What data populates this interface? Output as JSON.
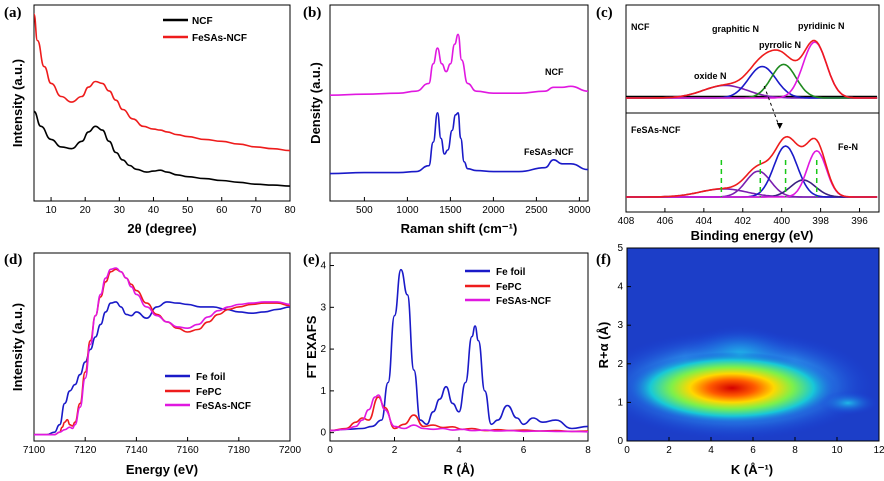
{
  "chart_data": [
    {
      "panel": "(a)",
      "type": "line",
      "xlabel": "2θ (degree)",
      "ylabel": "Intensity (a.u.)",
      "xlim": [
        5,
        80
      ],
      "xticks": [
        10,
        20,
        30,
        40,
        50,
        60,
        70,
        80
      ],
      "ylim": [
        0,
        1
      ],
      "legend_position": "top-right",
      "series": [
        {
          "name": "NCF",
          "color": "#000000",
          "x": [
            5,
            7,
            10,
            13,
            16,
            19,
            21,
            23,
            25,
            27,
            29,
            31,
            33,
            35,
            38,
            40,
            42,
            44,
            47,
            50,
            55,
            60,
            65,
            70,
            75,
            80
          ],
          "y": [
            0.48,
            0.4,
            0.33,
            0.29,
            0.28,
            0.32,
            0.37,
            0.4,
            0.38,
            0.32,
            0.26,
            0.22,
            0.19,
            0.17,
            0.155,
            0.16,
            0.165,
            0.155,
            0.14,
            0.13,
            0.12,
            0.11,
            0.1,
            0.09,
            0.085,
            0.08
          ]
        },
        {
          "name": "FeSAs-NCF",
          "color": "#ee1c1c",
          "x": [
            5,
            6,
            8,
            10,
            13,
            16,
            19,
            21,
            23,
            25,
            27,
            29,
            31,
            34,
            37,
            40,
            42,
            44,
            47,
            50,
            55,
            60,
            65,
            70,
            75,
            80
          ],
          "y": [
            1.0,
            0.86,
            0.72,
            0.63,
            0.56,
            0.53,
            0.56,
            0.61,
            0.64,
            0.63,
            0.59,
            0.54,
            0.49,
            0.44,
            0.4,
            0.385,
            0.38,
            0.37,
            0.355,
            0.345,
            0.33,
            0.32,
            0.305,
            0.29,
            0.28,
            0.27
          ]
        }
      ]
    },
    {
      "panel": "(b)",
      "type": "line",
      "xlabel": "Raman shift (cm⁻¹)",
      "ylabel": "Density (a.u.)",
      "xlim": [
        100,
        3100
      ],
      "xticks": [
        500,
        1000,
        1500,
        2000,
        2500,
        3000
      ],
      "ylim": [
        0,
        1
      ],
      "series": [
        {
          "name": "NCF",
          "color": "#e018e0",
          "x": [
            100,
            500,
            900,
            1100,
            1250,
            1300,
            1350,
            1400,
            1450,
            1500,
            1550,
            1590,
            1630,
            1700,
            1800,
            2000,
            2300,
            2600,
            2700,
            2800,
            2900,
            3100
          ],
          "y": [
            0.54,
            0.545,
            0.55,
            0.56,
            0.6,
            0.7,
            0.78,
            0.7,
            0.66,
            0.7,
            0.8,
            0.85,
            0.72,
            0.6,
            0.56,
            0.55,
            0.55,
            0.56,
            0.58,
            0.58,
            0.585,
            0.56
          ]
        },
        {
          "name": "FeSAs-NCF",
          "color": "#1a1ac8",
          "x": [
            100,
            500,
            900,
            1100,
            1250,
            1300,
            1350,
            1390,
            1430,
            1470,
            1520,
            1560,
            1590,
            1620,
            1660,
            1700,
            1800,
            2000,
            2300,
            2600,
            2700,
            2800,
            2900,
            3100
          ],
          "y": [
            0.14,
            0.145,
            0.145,
            0.15,
            0.18,
            0.3,
            0.45,
            0.32,
            0.24,
            0.26,
            0.36,
            0.44,
            0.45,
            0.32,
            0.2,
            0.165,
            0.155,
            0.15,
            0.15,
            0.17,
            0.21,
            0.19,
            0.19,
            0.16
          ]
        }
      ],
      "labels": [
        "NCF",
        "FeSAs-NCF"
      ]
    },
    {
      "panel": "(c)",
      "type": "line",
      "xlabel": "Binding energy (eV)",
      "xlim": [
        408,
        395
      ],
      "xticks": [
        408,
        406,
        404,
        402,
        400,
        398,
        396
      ],
      "sub_panels": [
        "NCF",
        "FeSAs-NCF"
      ],
      "annotations": [
        "graphitic N",
        "pyridinic N",
        "pyrrolic N",
        "oxide N",
        "Fe-N"
      ],
      "series_colors": {
        "envelope": "#ee1c1c",
        "pyridinic": "#e018e0",
        "pyrrolic": "#1f8a1f",
        "graphitic": "#1a1ac8",
        "oxide": "#7a1fb0",
        "fe_n": "#3a2080",
        "baseline": "#000000"
      }
    },
    {
      "panel": "(d)",
      "type": "line",
      "xlabel": "Energy (eV)",
      "ylabel": "Intensity (a.u.)",
      "xlim": [
        7100,
        7200
      ],
      "xticks": [
        7100,
        7120,
        7140,
        7160,
        7180,
        7200
      ],
      "ylim": [
        0,
        1.4
      ],
      "legend_position": "bottom-right",
      "series": [
        {
          "name": "Fe foil",
          "color": "#1a1ac8",
          "x": [
            7100,
            7105,
            7108,
            7110,
            7112,
            7114,
            7116,
            7118,
            7120,
            7122,
            7124,
            7126,
            7128,
            7130,
            7132,
            7134,
            7136,
            7138,
            7140,
            7144,
            7148,
            7152,
            7156,
            7160,
            7165,
            7170,
            7175,
            7180,
            7185,
            7190,
            7195,
            7200
          ],
          "y": [
            0.0,
            0.0,
            0.02,
            0.08,
            0.25,
            0.35,
            0.4,
            0.48,
            0.58,
            0.68,
            0.78,
            0.88,
            0.98,
            1.05,
            1.06,
            1.02,
            0.96,
            0.95,
            0.98,
            0.93,
            1.02,
            1.06,
            1.05,
            1.04,
            1.02,
            1.02,
            1.0,
            0.98,
            0.97,
            0.98,
            1.0,
            1.02
          ]
        },
        {
          "name": "FePC",
          "color": "#ee1c1c",
          "x": [
            7100,
            7108,
            7110,
            7111,
            7112,
            7113,
            7114,
            7115,
            7116,
            7118,
            7120,
            7122,
            7124,
            7126,
            7128,
            7130,
            7132,
            7134,
            7136,
            7138,
            7140,
            7144,
            7148,
            7152,
            7156,
            7160,
            7164,
            7168,
            7172,
            7176,
            7180,
            7185,
            7190,
            7195,
            7200
          ],
          "y": [
            0.0,
            0.0,
            0.02,
            0.06,
            0.1,
            0.12,
            0.08,
            0.07,
            0.1,
            0.25,
            0.5,
            0.75,
            0.95,
            1.1,
            1.22,
            1.3,
            1.32,
            1.3,
            1.25,
            1.2,
            1.15,
            1.05,
            0.96,
            0.9,
            0.85,
            0.82,
            0.84,
            0.9,
            0.96,
            1.0,
            1.02,
            1.04,
            1.05,
            1.05,
            1.03
          ]
        },
        {
          "name": "FeSAs-NCF",
          "color": "#e018e0",
          "x": [
            7100,
            7108,
            7110,
            7112,
            7114,
            7115,
            7116,
            7118,
            7120,
            7122,
            7124,
            7126,
            7128,
            7130,
            7132,
            7134,
            7136,
            7138,
            7140,
            7144,
            7148,
            7152,
            7156,
            7160,
            7164,
            7168,
            7172,
            7176,
            7180,
            7185,
            7190,
            7195,
            7200
          ],
          "y": [
            0.0,
            0.0,
            0.02,
            0.04,
            0.06,
            0.05,
            0.08,
            0.22,
            0.45,
            0.72,
            0.95,
            1.12,
            1.25,
            1.32,
            1.33,
            1.3,
            1.25,
            1.18,
            1.12,
            1.02,
            0.95,
            0.9,
            0.86,
            0.85,
            0.88,
            0.94,
            0.99,
            1.02,
            1.04,
            1.05,
            1.06,
            1.06,
            1.04
          ]
        }
      ]
    },
    {
      "panel": "(e)",
      "type": "line",
      "xlabel": "R (Å)",
      "ylabel": "FT EXAFS",
      "xlim": [
        0,
        8
      ],
      "xticks": [
        0,
        2,
        4,
        6,
        8
      ],
      "ylim": [
        -0.2,
        4.3
      ],
      "yticks": [
        0,
        1,
        2,
        3,
        4
      ],
      "legend_position": "top-right",
      "series": [
        {
          "name": "Fe foil",
          "color": "#1a1ac8",
          "x": [
            0,
            0.5,
            1.0,
            1.3,
            1.6,
            1.8,
            2.0,
            2.2,
            2.4,
            2.6,
            2.8,
            3.0,
            3.2,
            3.4,
            3.6,
            3.8,
            4.0,
            4.2,
            4.4,
            4.5,
            4.6,
            4.8,
            5.0,
            5.2,
            5.5,
            5.8,
            6.0,
            6.3,
            6.6,
            7.0,
            7.5,
            8.0
          ],
          "y": [
            0.05,
            0.08,
            0.1,
            0.15,
            0.3,
            1.2,
            2.8,
            3.9,
            3.3,
            1.5,
            0.3,
            0.2,
            0.5,
            0.8,
            1.1,
            0.7,
            0.5,
            1.2,
            2.3,
            2.55,
            2.2,
            1.0,
            0.2,
            0.3,
            0.65,
            0.35,
            0.2,
            0.35,
            0.25,
            0.3,
            0.1,
            0.15
          ]
        },
        {
          "name": "FePC",
          "color": "#ee1c1c",
          "x": [
            0,
            0.5,
            0.8,
            1.0,
            1.2,
            1.5,
            1.7,
            2.0,
            2.3,
            2.6,
            2.9,
            3.2,
            3.5,
            3.8,
            4.1,
            4.4,
            4.8,
            5.2,
            5.6,
            6.0,
            6.5,
            7.0,
            7.5,
            8.0
          ],
          "y": [
            0.05,
            0.1,
            0.25,
            0.35,
            0.3,
            0.85,
            0.6,
            0.1,
            0.2,
            0.42,
            0.15,
            0.18,
            0.12,
            0.14,
            0.08,
            0.1,
            0.05,
            0.07,
            0.05,
            0.06,
            0.04,
            0.05,
            0.03,
            0.04
          ]
        },
        {
          "name": "FeSAs-NCF",
          "color": "#e018e0",
          "x": [
            0,
            0.5,
            0.8,
            1.0,
            1.2,
            1.4,
            1.5,
            1.7,
            2.0,
            2.3,
            2.6,
            2.9,
            3.2,
            3.5,
            3.8,
            4.1,
            4.4,
            4.8,
            5.2,
            5.6,
            6.0,
            6.5,
            7.0,
            7.5,
            8.0
          ],
          "y": [
            0.05,
            0.08,
            0.15,
            0.3,
            0.55,
            0.85,
            0.9,
            0.55,
            0.15,
            0.1,
            0.18,
            0.1,
            0.08,
            0.1,
            0.06,
            0.08,
            0.05,
            0.06,
            0.04,
            0.05,
            0.03,
            0.04,
            0.03,
            0.03,
            0.02
          ]
        }
      ]
    },
    {
      "panel": "(f)",
      "type": "heatmap",
      "xlabel": "K (Å⁻¹)",
      "ylabel": "R+α (Å)",
      "xlim": [
        0,
        12
      ],
      "xticks": [
        0,
        2,
        4,
        6,
        8,
        10,
        12
      ],
      "ylim": [
        0,
        5
      ],
      "yticks": [
        0,
        1,
        2,
        3,
        4,
        5
      ],
      "hotspot": {
        "k": 5.0,
        "r": 1.3
      }
    }
  ]
}
